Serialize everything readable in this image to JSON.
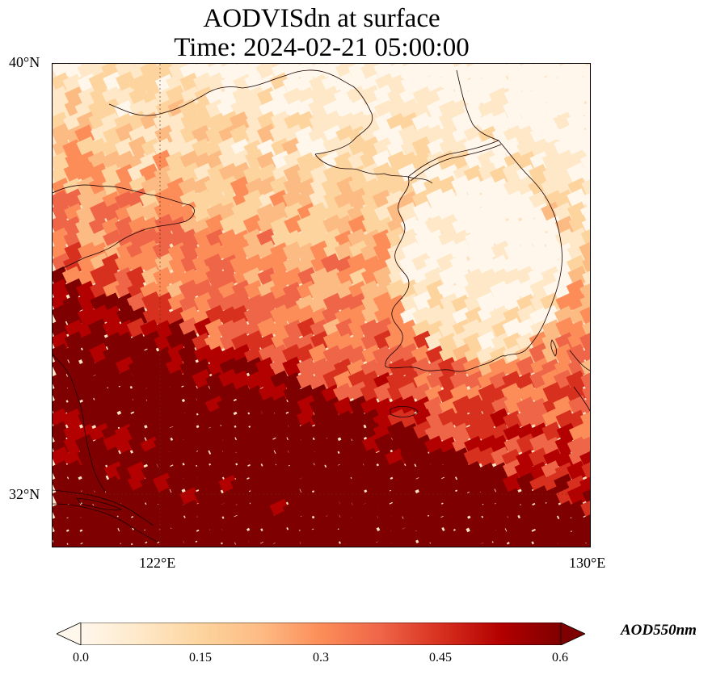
{
  "title": {
    "line1": "AODVISdn at surface",
    "line2": "Time: 2024-02-21 05:00:00"
  },
  "map": {
    "lon_range": [
      120,
      130
    ],
    "lat_range": [
      31,
      40
    ],
    "lat_ticks": [
      {
        "label": "40°N",
        "value": 40
      },
      {
        "label": "32°N",
        "value": 32
      }
    ],
    "lon_ticks": [
      {
        "label": "122°E",
        "value": 122
      },
      {
        "label": "130°E",
        "value": 130
      }
    ],
    "gridlines": "dotted",
    "coastlines": true,
    "field_colormap": "OrRd",
    "field_range": [
      0.0,
      0.6
    ]
  },
  "colorbar": {
    "ticks": [
      "0.0",
      "0.15",
      "0.3",
      "0.45",
      "0.6"
    ],
    "label": "AOD550nm",
    "extend": "both",
    "colors": [
      "#fff7ec",
      "#fee8c8",
      "#fdd49e",
      "#fdbb84",
      "#fc8d59",
      "#ef6548",
      "#d7301f",
      "#b30000",
      "#7f0000"
    ]
  }
}
